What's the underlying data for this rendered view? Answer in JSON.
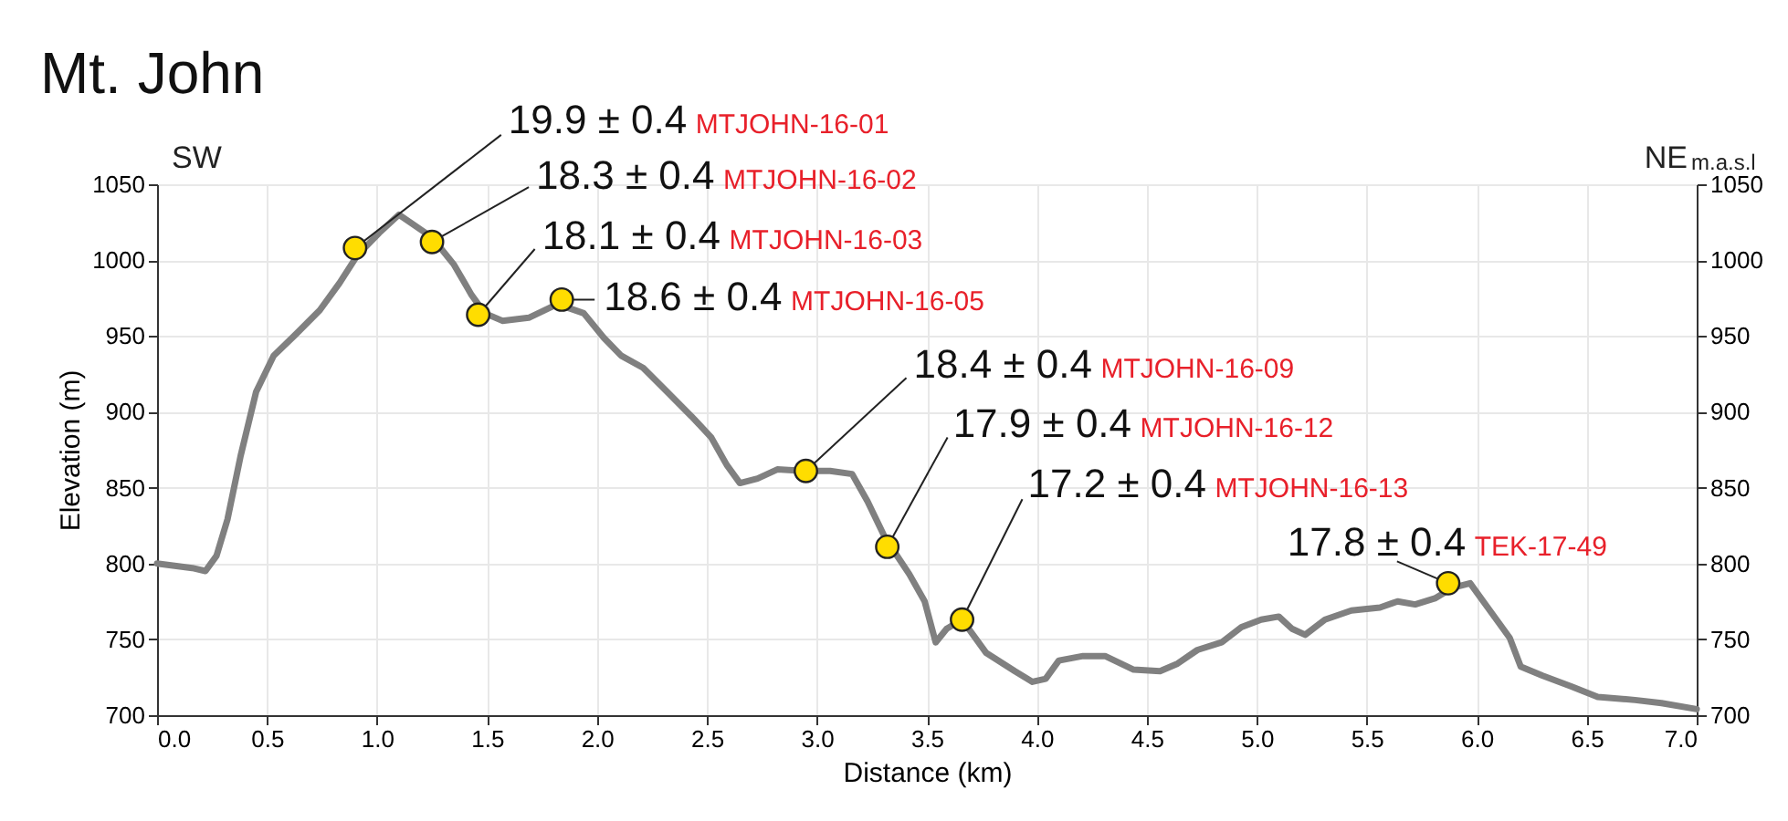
{
  "chart_data": {
    "type": "line",
    "title": "Mt. John",
    "xlabel": "Distance (km)",
    "ylabel": "Elevation (m)",
    "y2label": "m.a.s.l",
    "xlim": [
      0,
      7
    ],
    "xticks": [
      {
        "value": 0,
        "label": "0.0"
      },
      {
        "value": 0.5,
        "label": "0.5"
      },
      {
        "value": 1,
        "label": "1.0"
      },
      {
        "value": 1.5,
        "label": "1.5"
      },
      {
        "value": 2,
        "label": "2.0"
      },
      {
        "value": 2.5,
        "label": "2.5"
      },
      {
        "value": 3,
        "label": "3.0"
      },
      {
        "value": 3.5,
        "label": "3.5"
      },
      {
        "value": 4,
        "label": "4.0"
      },
      {
        "value": 4.5,
        "label": "4.5"
      },
      {
        "value": 5,
        "label": "5.0"
      },
      {
        "value": 5.5,
        "label": "5.5"
      },
      {
        "value": 6,
        "label": "6.0"
      },
      {
        "value": 6.5,
        "label": "6.5"
      },
      {
        "value": 7,
        "label": "7.0"
      }
    ],
    "ylim": [
      700,
      1050
    ],
    "yticks": [
      700,
      750,
      800,
      850,
      900,
      950,
      1000,
      1050
    ],
    "y2lim": [
      700,
      1050
    ],
    "y2ticks": [
      700,
      750,
      800,
      850,
      900,
      950,
      1000,
      1050
    ],
    "grid": true,
    "series": [
      {
        "type": "line",
        "color": "#808080",
        "marker": "none",
        "x": [
          0,
          0.16,
          0.22,
          0.27,
          0.32,
          0.38,
          0.45,
          0.53,
          0.63,
          0.74,
          0.83,
          0.91,
          1.01,
          1.1,
          1.15,
          1.25,
          1.35,
          1.43,
          1.49,
          1.57,
          1.69,
          1.82,
          1.94,
          2.03,
          2.11,
          2.21,
          2.32,
          2.43,
          2.52,
          2.59,
          2.65,
          2.73,
          2.82,
          2.94,
          3.06,
          3.16,
          3.23,
          3.31,
          3.42,
          3.49,
          3.54,
          3.59,
          3.66,
          3.77,
          3.9,
          3.98,
          4.04,
          4.1,
          4.21,
          4.31,
          4.44,
          4.56,
          4.64,
          4.73,
          4.84,
          4.93,
          5.02,
          5.1,
          5.16,
          5.22,
          5.31,
          5.43,
          5.56,
          5.64,
          5.72,
          5.81,
          5.89,
          5.97,
          6.05,
          6.15,
          6.2,
          6.3,
          6.43,
          6.55,
          6.72,
          6.84,
          7.0
        ],
        "values": [
          800,
          797,
          795,
          805,
          829,
          871,
          913,
          937,
          951,
          967,
          985,
          1003,
          1018,
          1030,
          1025,
          1015,
          997,
          977,
          965,
          960,
          962,
          971,
          965,
          949,
          937,
          929,
          913,
          897,
          883,
          865,
          853,
          856,
          862,
          861,
          861,
          859,
          841,
          817,
          793,
          775,
          748,
          757,
          763,
          741,
          729,
          722,
          724,
          736,
          739,
          739,
          730,
          729,
          734,
          743,
          748,
          758,
          763,
          765,
          757,
          753,
          763,
          769,
          771,
          775,
          773,
          777,
          784,
          787,
          771,
          751,
          732,
          726,
          719,
          712,
          710,
          708,
          704
        ]
      },
      {
        "type": "scatter",
        "color": "#ffdd00",
        "marker": "circle",
        "x": [
          0.9,
          1.25,
          1.46,
          1.84,
          2.95,
          3.32,
          3.66,
          5.87
        ],
        "values": [
          1008,
          1012,
          964,
          974,
          861,
          811,
          763,
          787
        ]
      }
    ],
    "annotations": [
      "SW",
      "NE",
      {
        "text": "19.9 ± 0.4",
        "x": 0.9,
        "y": 1008
      },
      "MTJOHN-16-01",
      {
        "text": "18.3 ± 0.4",
        "x": 1.25,
        "y": 1012
      },
      "MTJOHN-16-02",
      {
        "text": "18.1 ± 0.4",
        "x": 1.46,
        "y": 964
      },
      "MTJOHN-16-03",
      {
        "text": "18.6 ± 0.4",
        "x": 1.84,
        "y": 974
      },
      "MTJOHN-16-05",
      {
        "text": "18.4 ± 0.4",
        "x": 2.95,
        "y": 861
      },
      "MTJOHN-16-09",
      {
        "text": "17.9 ± 0.4",
        "x": 3.32,
        "y": 811
      },
      "MTJOHN-16-12",
      {
        "text": "17.2 ± 0.4",
        "x": 3.66,
        "y": 763
      },
      "MTJOHN-16-13",
      {
        "text": "17.8 ± 0.4",
        "x": 5.87,
        "y": 787
      },
      "TEK-17-49"
    ]
  }
}
